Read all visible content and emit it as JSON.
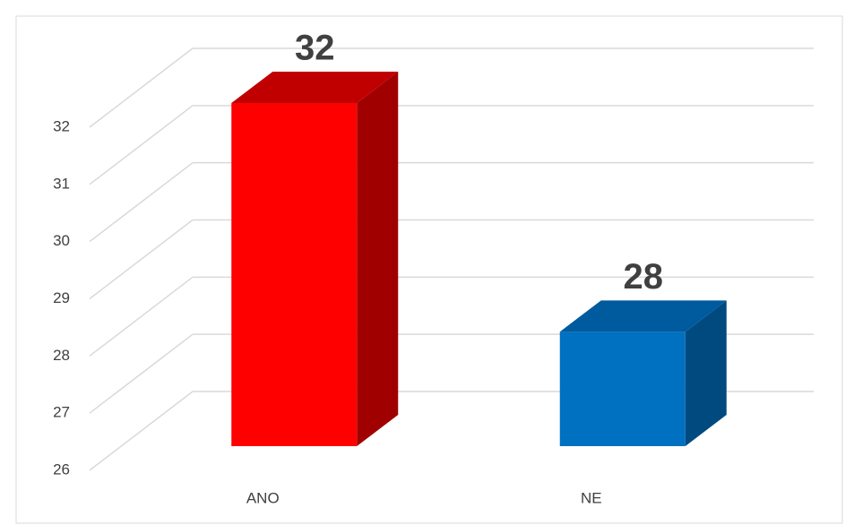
{
  "chart_data": {
    "type": "bar3d",
    "categories": [
      "ANO",
      "NE"
    ],
    "values": [
      32,
      28
    ],
    "colors": [
      "#ff0000",
      "#0070c0"
    ],
    "top_colors": [
      "#c00000",
      "#005a9e"
    ],
    "side_colors": [
      "#a00000",
      "#004a80"
    ],
    "ylim": [
      26,
      32
    ],
    "yticks": [
      26,
      27,
      28,
      29,
      30,
      31,
      32
    ],
    "grid": true,
    "data_labels": true
  }
}
